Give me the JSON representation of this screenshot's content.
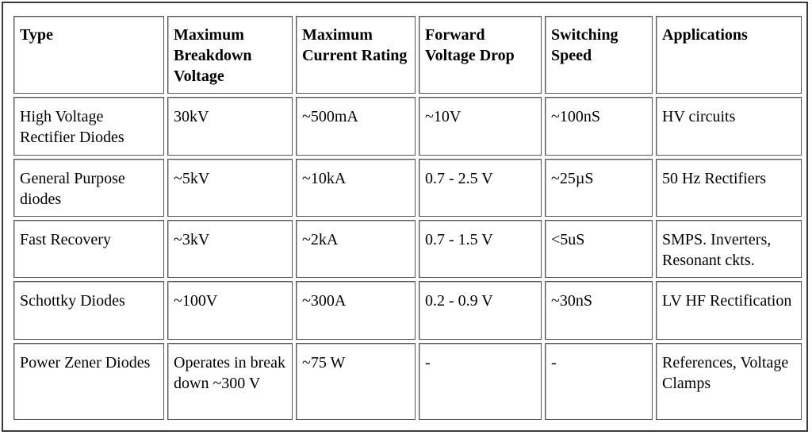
{
  "table": {
    "headers": [
      "Type",
      "Maximum Breakdown Voltage",
      "Maximum Current Rating",
      "Forward Voltage Drop",
      "Switching Speed",
      "Applications"
    ],
    "rows": [
      [
        "High Voltage Rectifier Diodes",
        "30kV",
        "~500mA",
        "~10V",
        "~100nS",
        "HV circuits"
      ],
      [
        "General Purpose diodes",
        "~5kV",
        "~10kA",
        "0.7 - 2.5 V",
        "~25µS",
        "50 Hz Rectifiers"
      ],
      [
        "Fast Recovery",
        "~3kV",
        "~2kA",
        "0.7 - 1.5 V",
        "<5uS",
        "SMPS. Inverters, Resonant ckts."
      ],
      [
        "Schottky Diodes",
        "~100V",
        "~300A",
        "0.2 - 0.9 V",
        "~30nS",
        "LV HF Rectification"
      ],
      [
        "Power Zener Diodes",
        "Operates in break down ~300 V",
        "~75 W",
        "-",
        "-",
        "References, Voltage Clamps"
      ]
    ]
  }
}
